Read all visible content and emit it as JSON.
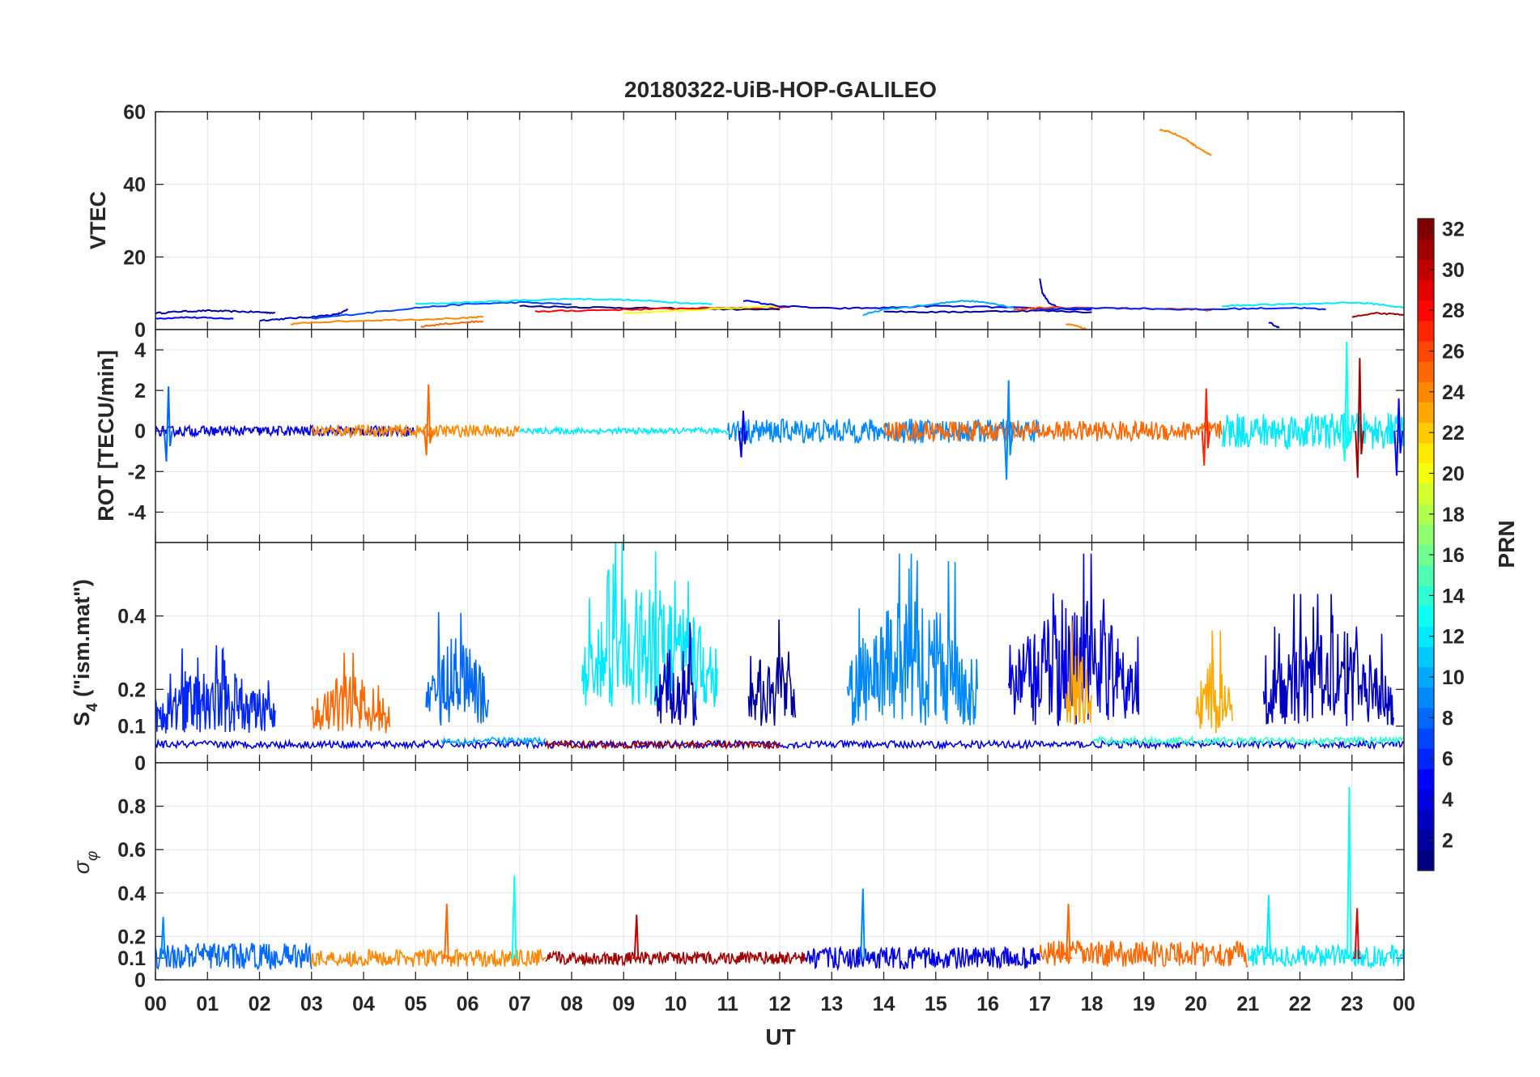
{
  "chart_data": {
    "type": "line",
    "title": "20180322-UiB-HOP-GALILEO",
    "xlabel": "UT",
    "xlim": [
      0,
      24
    ],
    "x_tick_labels": [
      "00",
      "01",
      "02",
      "03",
      "04",
      "05",
      "06",
      "07",
      "08",
      "09",
      "10",
      "11",
      "12",
      "13",
      "14",
      "15",
      "16",
      "17",
      "18",
      "19",
      "20",
      "21",
      "22",
      "23",
      "00"
    ],
    "grid": true,
    "panels": [
      {
        "id": "vtec",
        "ylabel": "VTEC",
        "ylim": [
          0,
          60
        ],
        "yticks": [
          0,
          20,
          40,
          60
        ],
        "ytick_labels": [
          "0",
          "20",
          "40",
          "60"
        ],
        "series": [
          {
            "prn": 2,
            "x": [
              0,
              0.5,
              1,
              1.5,
              2,
              2.3
            ],
            "y": [
              4.5,
              5,
              5.2,
              5,
              4.8,
              4.6
            ]
          },
          {
            "prn": 5,
            "x": [
              0,
              0.5,
              1,
              1.5
            ],
            "y": [
              3,
              3.4,
              3.2,
              3
            ]
          },
          {
            "prn": 3,
            "x": [
              2,
              2.5,
              3,
              3.5,
              3.7
            ],
            "y": [
              2.5,
              3,
              3.5,
              4.2,
              5.5
            ]
          },
          {
            "prn": 7,
            "x": [
              3,
              4,
              5,
              6,
              7,
              8
            ],
            "y": [
              3,
              4.5,
              6,
              7,
              7.5,
              7
            ]
          },
          {
            "prn": 12,
            "x": [
              5,
              6,
              7,
              8,
              9,
              10,
              10.7
            ],
            "y": [
              7,
              7.5,
              8,
              8.5,
              8.2,
              7.5,
              7
            ]
          },
          {
            "prn": 1,
            "x": [
              7,
              8,
              9,
              10,
              11,
              12
            ],
            "y": [
              6.5,
              6.2,
              6,
              5.8,
              5.6,
              5.5
            ]
          },
          {
            "prn": 28,
            "x": [
              7.3,
              8,
              9,
              10,
              11,
              12.2
            ],
            "y": [
              5,
              5.2,
              5.5,
              5.8,
              6,
              6.2
            ]
          },
          {
            "prn": 20,
            "x": [
              9,
              10,
              11,
              12
            ],
            "y": [
              4.5,
              5.2,
              5.8,
              6.3
            ]
          },
          {
            "prn": 24,
            "x": [
              2.6,
              3,
              4,
              5,
              6,
              6.3
            ],
            "y": [
              1.5,
              2,
              2.5,
              2.8,
              3.2,
              3.5
            ]
          },
          {
            "prn": 25,
            "x": [
              5.1,
              5.5,
              6,
              6.3
            ],
            "y": [
              0.8,
              1.5,
              2,
              2.3
            ]
          },
          {
            "prn": 4,
            "x": [
              11.3,
              12,
              13,
              14,
              15,
              16,
              17,
              18
            ],
            "y": [
              8,
              6.5,
              5.8,
              6,
              6.5,
              6.2,
              5.8,
              5.5
            ]
          },
          {
            "prn": 10,
            "x": [
              13.6,
              14,
              15,
              15.5,
              16,
              16.5
            ],
            "y": [
              4,
              5.5,
              7,
              8,
              7.5,
              6
            ]
          },
          {
            "prn": 2,
            "x": [
              14,
              15,
              16,
              17,
              18
            ],
            "y": [
              5,
              4.8,
              5,
              5.2,
              4.8
            ]
          },
          {
            "prn": 3,
            "x": [
              17,
              17.05,
              17.2,
              17.4
            ],
            "y": [
              14,
              10,
              7,
              6
            ]
          },
          {
            "prn": 26,
            "x": [
              16.5,
              17,
              18,
              19,
              20,
              20.3
            ],
            "y": [
              5.5,
              6,
              6,
              5.8,
              5.6,
              5.2
            ]
          },
          {
            "prn": 6,
            "x": [
              17,
              18,
              19,
              20,
              21,
              22,
              22.5
            ],
            "y": [
              5.5,
              6,
              5.8,
              5.5,
              5.8,
              6,
              5.5
            ]
          },
          {
            "prn": 12,
            "x": [
              20.5,
              21,
              22,
              23,
              23.5,
              24
            ],
            "y": [
              6.5,
              6.8,
              7,
              7.5,
              7,
              6
            ]
          },
          {
            "prn": 24,
            "x": [
              19.3,
              19.5,
              19.8,
              20,
              20.3
            ],
            "y": [
              55,
              54.5,
              52.5,
              50.5,
              48
            ]
          },
          {
            "prn": 24,
            "x": [
              17.5,
              17.7,
              17.9
            ],
            "y": [
              1.5,
              1,
              0
            ]
          },
          {
            "prn": 3,
            "x": [
              21.4,
              21.6
            ],
            "y": [
              2,
              0.5
            ]
          },
          {
            "prn": 31,
            "x": [
              23,
              23.5,
              24
            ],
            "y": [
              3.5,
              4.5,
              4
            ]
          }
        ]
      },
      {
        "id": "rot",
        "ylabel": "ROT [TECU/min]",
        "ylim": [
          -5.5,
          5
        ],
        "yticks": [
          -4,
          -2,
          0,
          2,
          4
        ],
        "ytick_labels": [
          "-4",
          "-2",
          "0",
          "2",
          "4"
        ],
        "spikes": [
          {
            "x": 0.25,
            "lo": -1.5,
            "hi": 2.2,
            "prn": 8
          },
          {
            "x": 5.25,
            "lo": -1.2,
            "hi": 2.3,
            "prn": 25
          },
          {
            "x": 11.3,
            "lo": -1.3,
            "hi": 1,
            "prn": 4
          },
          {
            "x": 16.4,
            "lo": -2.4,
            "hi": 2.5,
            "prn": 9
          },
          {
            "x": 20.2,
            "lo": -1.7,
            "hi": 2.1,
            "prn": 27
          },
          {
            "x": 22.9,
            "lo": -1.5,
            "hi": 4.4,
            "prn": 13
          },
          {
            "x": 23.15,
            "lo": -2.3,
            "hi": 3.6,
            "prn": 31
          },
          {
            "x": 23.9,
            "lo": -2.2,
            "hi": 1.6,
            "prn": 5
          }
        ],
        "noise_bands": [
          {
            "x0": 0,
            "x1": 5,
            "amp": 0.25,
            "prn": 4
          },
          {
            "x0": 3,
            "x1": 7,
            "amp": 0.3,
            "prn": 24
          },
          {
            "x0": 7,
            "x1": 11,
            "amp": 0.15,
            "prn": 12
          },
          {
            "x0": 11,
            "x1": 17,
            "amp": 0.6,
            "prn": 9
          },
          {
            "x0": 14,
            "x1": 20.5,
            "amp": 0.5,
            "prn": 25
          },
          {
            "x0": 20.5,
            "x1": 24,
            "amp": 0.9,
            "prn": 12
          }
        ]
      },
      {
        "id": "s4",
        "ylabel": "S4 (\"ism.mat\")",
        "ylabel_main": "S",
        "ylabel_sub": "4",
        "ylabel_rest": " (\"ism.mat\")",
        "ylim": [
          0,
          0.6
        ],
        "yticks": [
          0,
          0.1,
          0.2,
          0.4
        ],
        "ytick_labels": [
          "0",
          "0.1",
          "0.2",
          "0.4"
        ],
        "bursts": [
          {
            "x0": 0,
            "x1": 2.3,
            "base": 0.08,
            "peak": 0.32,
            "prn": 6
          },
          {
            "x0": 3,
            "x1": 4.5,
            "base": 0.08,
            "peak": 0.3,
            "prn": 25
          },
          {
            "x0": 5.2,
            "x1": 6.4,
            "base": 0.1,
            "peak": 0.42,
            "prn": 8
          },
          {
            "x0": 8.2,
            "x1": 10.8,
            "base": 0.15,
            "peak": 0.6,
            "prn": 12
          },
          {
            "x0": 9.6,
            "x1": 10.4,
            "base": 0.1,
            "peak": 0.4,
            "prn": 3
          },
          {
            "x0": 11.4,
            "x1": 12.3,
            "base": 0.1,
            "peak": 0.39,
            "prn": 2
          },
          {
            "x0": 13.3,
            "x1": 15.8,
            "base": 0.1,
            "peak": 0.57,
            "prn": 9
          },
          {
            "x0": 16.4,
            "x1": 18.9,
            "base": 0.1,
            "peak": 0.57,
            "prn": 4
          },
          {
            "x0": 17.5,
            "x1": 18,
            "base": 0.1,
            "peak": 0.39,
            "prn": 23
          },
          {
            "x0": 20,
            "x1": 20.7,
            "base": 0.08,
            "peak": 0.36,
            "prn": 23
          },
          {
            "x0": 21.3,
            "x1": 23.8,
            "base": 0.1,
            "peak": 0.46,
            "prn": 3
          }
        ],
        "baselines": [
          {
            "x0": 0,
            "x1": 24,
            "level": 0.05,
            "prn": 4
          },
          {
            "x0": 7.5,
            "x1": 12,
            "level": 0.05,
            "prn": 31
          },
          {
            "x0": 5.5,
            "x1": 7.5,
            "level": 0.06,
            "prn": 10
          },
          {
            "x0": 18,
            "x1": 24,
            "level": 0.06,
            "prn": 14
          }
        ]
      },
      {
        "id": "sigphi",
        "ylabel": "σφ",
        "ylabel_main": "σ",
        "ylabel_sub": "φ",
        "ylim": [
          0,
          1
        ],
        "yticks": [
          0,
          0.1,
          0.2,
          0.4,
          0.6,
          0.8
        ],
        "ytick_labels": [
          "0",
          "0.1",
          "0.2",
          "0.4",
          "0.6",
          "0.8"
        ],
        "spikes": [
          {
            "x": 0.15,
            "lo": 0.1,
            "hi": 0.29,
            "prn": 9
          },
          {
            "x": 5.6,
            "lo": 0.1,
            "hi": 0.35,
            "prn": 25
          },
          {
            "x": 6.9,
            "lo": 0.1,
            "hi": 0.48,
            "prn": 13
          },
          {
            "x": 9.25,
            "lo": 0.1,
            "hi": 0.3,
            "prn": 30
          },
          {
            "x": 13.6,
            "lo": 0.1,
            "hi": 0.42,
            "prn": 9
          },
          {
            "x": 17.55,
            "lo": 0.1,
            "hi": 0.35,
            "prn": 25
          },
          {
            "x": 21.4,
            "lo": 0.1,
            "hi": 0.39,
            "prn": 12
          },
          {
            "x": 22.95,
            "lo": 0.1,
            "hi": 0.89,
            "prn": 13
          },
          {
            "x": 23.1,
            "lo": 0.1,
            "hi": 0.33,
            "prn": 29
          }
        ],
        "noise_bands": [
          {
            "x0": 0,
            "x1": 3,
            "center": 0.11,
            "amp": 0.06,
            "prn": 8
          },
          {
            "x0": 3,
            "x1": 7.5,
            "center": 0.1,
            "amp": 0.04,
            "prn": 24
          },
          {
            "x0": 7.5,
            "x1": 12.5,
            "center": 0.1,
            "amp": 0.03,
            "prn": 31
          },
          {
            "x0": 12.5,
            "x1": 17,
            "center": 0.1,
            "amp": 0.05,
            "prn": 4
          },
          {
            "x0": 17,
            "x1": 21,
            "center": 0.12,
            "amp": 0.06,
            "prn": 25
          },
          {
            "x0": 21,
            "x1": 24,
            "center": 0.11,
            "amp": 0.05,
            "prn": 12
          }
        ]
      }
    ],
    "colorbar": {
      "label": "PRN",
      "range": [
        1,
        32
      ],
      "ticks": [
        2,
        4,
        6,
        8,
        10,
        12,
        14,
        16,
        18,
        20,
        22,
        24,
        26,
        28,
        30,
        32
      ],
      "tick_labels": [
        "2",
        "4",
        "6",
        "8",
        "10",
        "12",
        "14",
        "16",
        "18",
        "20",
        "22",
        "24",
        "26",
        "28",
        "30",
        "32"
      ],
      "colormap": "jet"
    }
  }
}
